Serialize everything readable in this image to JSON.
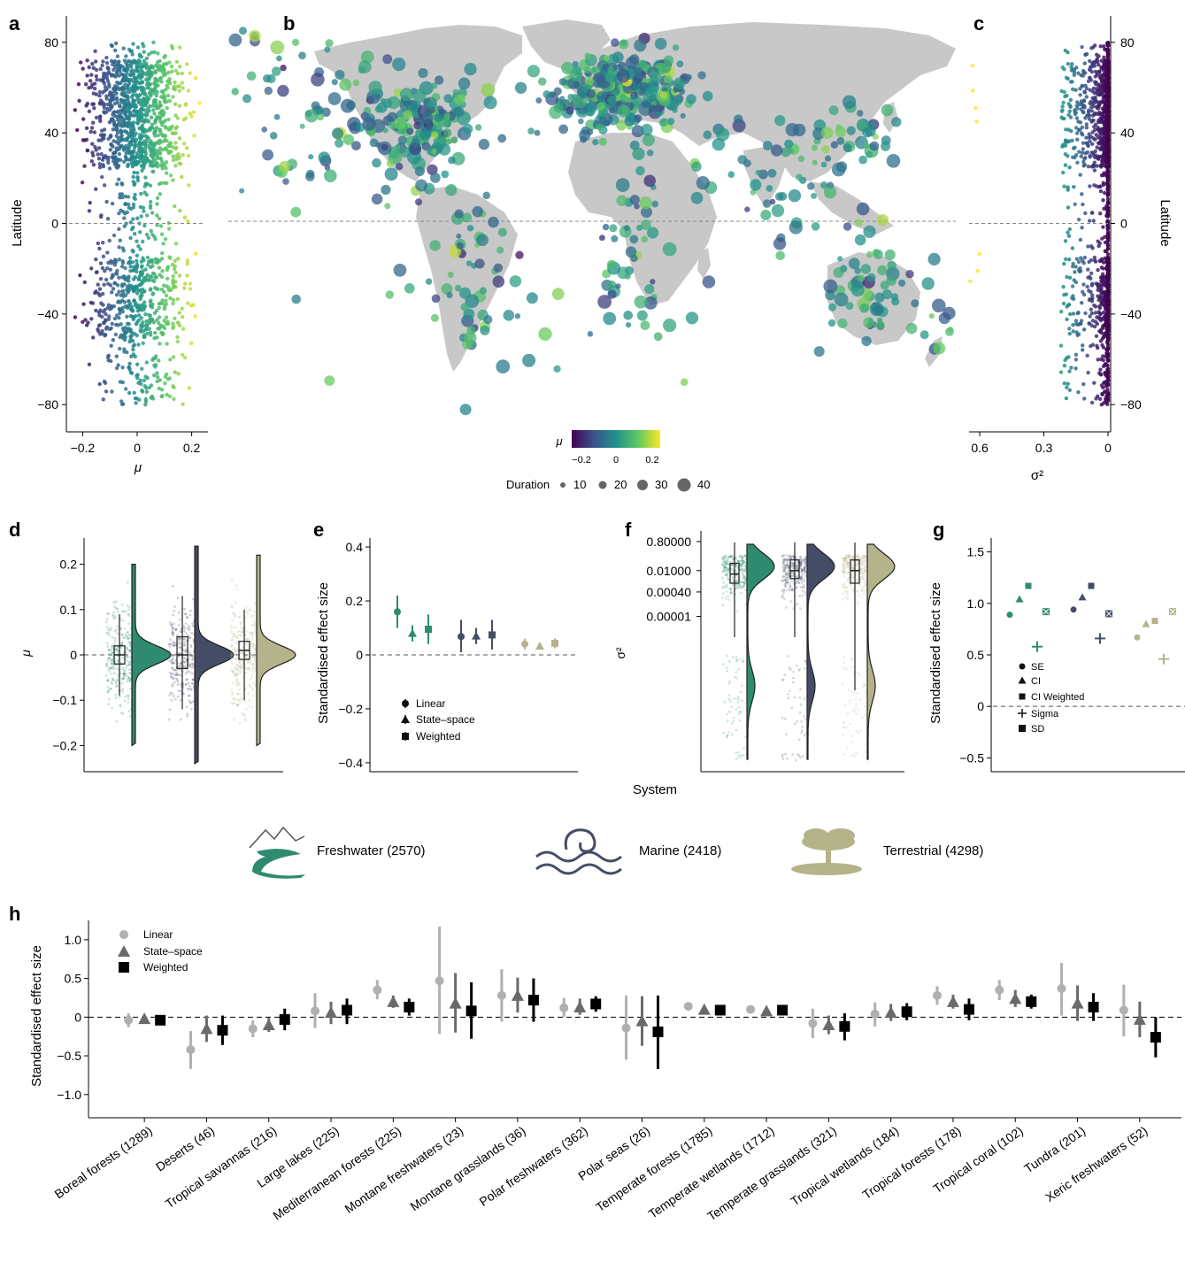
{
  "panel_letters": {
    "a": "a",
    "b": "b",
    "c": "c",
    "d": "d",
    "e": "e",
    "f": "f",
    "g": "g",
    "h": "h"
  },
  "colors": {
    "freshwater": "#2e8b6f",
    "marine": "#454d66",
    "terrestrial": "#b4b38a",
    "land": "#c8c8c8",
    "viridis": [
      "#440154",
      "#3b528b",
      "#21918c",
      "#5ec962",
      "#fde725"
    ],
    "h_linear": "#b0b0b0",
    "h_statespace": "#6a6a6a",
    "h_weighted": "#000000"
  },
  "icons": {
    "freshwater": "river-mountain-icon",
    "marine": "wave-icon",
    "terrestrial": "acacia-tree-icon"
  },
  "legend_systems": {
    "freshwater": "Freshwater (2570)",
    "marine": "Marine (2418)",
    "terrestrial": "Terrestrial (4298)"
  },
  "colorbar": {
    "label": "μ",
    "ticks": [
      "−0.2",
      "0",
      "0.2"
    ]
  },
  "duration_legend": {
    "label": "Duration",
    "values": [
      "10",
      "20",
      "30",
      "40"
    ]
  },
  "shared_xlabel": "System",
  "chart_data": [
    {
      "panel": "a",
      "type": "scatter",
      "xlabel": "μ",
      "ylabel": "Latitude",
      "xlim": [
        -0.25,
        0.25
      ],
      "ylim": [
        -85,
        85
      ],
      "xticks": [
        {
          "v": -0.2,
          "label": "−0.2"
        },
        {
          "v": 0,
          "label": "0"
        },
        {
          "v": 0.2,
          "label": "0.2"
        }
      ],
      "yticks": [
        {
          "v": -80,
          "label": "−80"
        },
        {
          "v": -40,
          "label": "−40"
        },
        {
          "v": 0,
          "label": "0"
        },
        {
          "v": 40,
          "label": "40"
        },
        {
          "v": 80,
          "label": "80"
        }
      ],
      "reference_line": {
        "axis": "y",
        "value": 0,
        "style": "dashed"
      },
      "color_by": "x"
    },
    {
      "panel": "b",
      "type": "scatter",
      "description_fields": {
        "color": "μ",
        "size": "Duration"
      },
      "xlim": [
        -180,
        180
      ],
      "ylim": [
        -85,
        85
      ],
      "reference_line": {
        "axis": "y",
        "value": 0,
        "style": "dashed"
      }
    },
    {
      "panel": "c",
      "type": "scatter",
      "xlabel": "σ²",
      "ylabel": "Latitude",
      "xlim": [
        0.65,
        0
      ],
      "ylim": [
        -85,
        85
      ],
      "xticks": [
        {
          "v": 0.6,
          "label": "0.6"
        },
        {
          "v": 0.3,
          "label": "0.3"
        },
        {
          "v": 0,
          "label": "0"
        }
      ],
      "yticks": [
        {
          "v": -80,
          "label": "−80"
        },
        {
          "v": -40,
          "label": "−40"
        },
        {
          "v": 0,
          "label": "0"
        },
        {
          "v": 40,
          "label": "40"
        },
        {
          "v": 80,
          "label": "80"
        }
      ],
      "reference_line": {
        "axis": "y",
        "value": 0,
        "style": "dashed"
      },
      "color_by": "x"
    },
    {
      "panel": "d",
      "type": "box",
      "ylabel": "μ",
      "ylim": [
        -0.25,
        0.25
      ],
      "yticks": [
        {
          "v": -0.2,
          "label": "−0.2"
        },
        {
          "v": -0.1,
          "label": "−0.1"
        },
        {
          "v": 0,
          "label": "0"
        },
        {
          "v": 0.1,
          "label": "0.1"
        },
        {
          "v": 0.2,
          "label": "0.2"
        }
      ],
      "reference_line": {
        "axis": "y",
        "value": 0,
        "style": "dashed"
      },
      "series": [
        {
          "name": "Freshwater",
          "q1": -0.02,
          "median": 0,
          "q3": 0.02,
          "whisker_low": -0.09,
          "whisker_high": 0.09,
          "min": -0.2,
          "max": 0.2
        },
        {
          "name": "Marine",
          "q1": -0.03,
          "median": 0,
          "q3": 0.04,
          "whisker_low": -0.12,
          "whisker_high": 0.13,
          "min": -0.24,
          "max": 0.24
        },
        {
          "name": "Terrestrial",
          "q1": -0.01,
          "median": 0.01,
          "q3": 0.03,
          "whisker_low": -0.1,
          "whisker_high": 0.1,
          "min": -0.2,
          "max": 0.22
        }
      ]
    },
    {
      "panel": "e",
      "type": "errorbar",
      "ylabel": "Standardised effect size",
      "ylim": [
        -0.42,
        0.42
      ],
      "yticks": [
        {
          "v": -0.4,
          "label": "−0.4"
        },
        {
          "v": -0.2,
          "label": "−0.2"
        },
        {
          "v": 0,
          "label": "0"
        },
        {
          "v": 0.2,
          "label": "0.2"
        },
        {
          "v": 0.4,
          "label": "0.4"
        }
      ],
      "reference_line": {
        "axis": "y",
        "value": 0,
        "style": "dashed"
      },
      "legend": [
        "Linear",
        "State–space",
        "Weighted"
      ],
      "groups": [
        {
          "system": "Freshwater",
          "points": [
            {
              "method": "Linear",
              "y": 0.16,
              "lo": 0.1,
              "hi": 0.22
            },
            {
              "method": "State–space",
              "y": 0.08,
              "lo": 0.05,
              "hi": 0.11
            },
            {
              "method": "Weighted",
              "y": 0.095,
              "lo": 0.04,
              "hi": 0.15
            }
          ]
        },
        {
          "system": "Marine",
          "points": [
            {
              "method": "Linear",
              "y": 0.068,
              "lo": 0.01,
              "hi": 0.13
            },
            {
              "method": "State–space",
              "y": 0.07,
              "lo": 0.04,
              "hi": 0.1
            },
            {
              "method": "Weighted",
              "y": 0.074,
              "lo": 0.02,
              "hi": 0.13
            }
          ]
        },
        {
          "system": "Terrestrial",
          "points": [
            {
              "method": "Linear",
              "y": 0.04,
              "lo": 0.02,
              "hi": 0.06
            },
            {
              "method": "State–space",
              "y": 0.033,
              "lo": 0.025,
              "hi": 0.041
            },
            {
              "method": "Weighted",
              "y": 0.043,
              "lo": 0.025,
              "hi": 0.061
            }
          ]
        }
      ]
    },
    {
      "panel": "f",
      "type": "box",
      "ylabel": "σ²",
      "yscale": "log",
      "yticks": [
        {
          "v": 0.8,
          "label": "0.80000"
        },
        {
          "v": 0.01,
          "label": "0.01000"
        },
        {
          "v": 0.0004,
          "label": "0.00040"
        },
        {
          "v": 1e-05,
          "label": "0.00001"
        }
      ],
      "series": [
        {
          "name": "Freshwater",
          "q1": 0.0015,
          "median": 0.006,
          "q3": 0.03,
          "whisker_low": 1e-05,
          "whisker_high": 0.7
        },
        {
          "name": "Marine",
          "q1": 0.003,
          "median": 0.01,
          "q3": 0.05,
          "whisker_low": 1e-05,
          "whisker_high": 0.7
        },
        {
          "name": "Terrestrial",
          "q1": 0.0015,
          "median": 0.01,
          "q3": 0.05,
          "whisker_low": 1e-05,
          "whisker_high": 0.7
        }
      ]
    },
    {
      "panel": "g",
      "type": "scatter",
      "ylabel": "Standardised effect size",
      "ylim": [
        -0.6,
        1.6
      ],
      "yticks": [
        {
          "v": -0.5,
          "label": "−0.5"
        },
        {
          "v": 0,
          "label": "0"
        },
        {
          "v": 0.5,
          "label": "0.5"
        },
        {
          "v": 1,
          "label": "1.0"
        },
        {
          "v": 1.5,
          "label": "1.5"
        }
      ],
      "reference_line": {
        "axis": "y",
        "value": 0,
        "style": "dashed"
      },
      "legend": [
        "SE",
        "CI",
        "CI Weighted",
        "Sigma",
        "SD"
      ],
      "groups": [
        {
          "system": "Freshwater",
          "points": [
            {
              "method": "SE",
              "y": 0.89
            },
            {
              "method": "CI",
              "y": 1.04
            },
            {
              "method": "CI Weighted",
              "y": 1.17
            },
            {
              "method": "Sigma",
              "y": 0.58
            },
            {
              "method": "SD",
              "y": 0.92
            }
          ]
        },
        {
          "system": "Marine",
          "points": [
            {
              "method": "SE",
              "y": 0.94
            },
            {
              "method": "CI",
              "y": 1.06
            },
            {
              "method": "CI Weighted",
              "y": 1.17
            },
            {
              "method": "Sigma",
              "y": 0.66
            },
            {
              "method": "SD",
              "y": 0.9
            }
          ]
        },
        {
          "system": "Terrestrial",
          "points": [
            {
              "method": "SE",
              "y": 0.67
            },
            {
              "method": "CI",
              "y": 0.8
            },
            {
              "method": "CI Weighted",
              "y": 0.83
            },
            {
              "method": "Sigma",
              "y": 0.46
            },
            {
              "method": "SD",
              "y": 0.92
            }
          ]
        }
      ]
    },
    {
      "panel": "h",
      "type": "errorbar",
      "ylabel": "Standardised effect size",
      "ylim": [
        -1.3,
        1.25
      ],
      "yticks": [
        {
          "v": -1,
          "label": "−1.0"
        },
        {
          "v": -0.5,
          "label": "−0.5"
        },
        {
          "v": 0,
          "label": "0"
        },
        {
          "v": 0.5,
          "label": "0.5"
        },
        {
          "v": 1,
          "label": "1.0"
        }
      ],
      "reference_line": {
        "axis": "y",
        "value": 0,
        "style": "dashed"
      },
      "legend": [
        "Linear",
        "State–space",
        "Weighted"
      ],
      "categories": [
        "Boreal forests (1289)",
        "Deserts (46)",
        "Tropical savannas (216)",
        "Large lakes (225)",
        "Mediterranean forests (225)",
        "Montane freshwaters (23)",
        "Montane grasslands (36)",
        "Polar freshwaters (362)",
        "Polar seas (26)",
        "Temperate forests (1785)",
        "Temperate wetlands (1712)",
        "Temperate grasslands (321)",
        "Tropical wetlands (184)",
        "Tropical forests (178)",
        "Tropical coral (102)",
        "Tundra (201)",
        "Xeric freshwaters (52)"
      ],
      "series": [
        {
          "name": "Linear",
          "values": [
            -0.04,
            -0.42,
            -0.15,
            0.08,
            0.35,
            0.47,
            0.28,
            0.12,
            -0.14,
            0.14,
            0.1,
            -0.08,
            0.04,
            0.28,
            0.35,
            0.37,
            0.09
          ],
          "lo": [
            -0.13,
            -0.67,
            -0.26,
            -0.14,
            0.23,
            -0.22,
            -0.06,
            0.0,
            -0.55,
            0.09,
            0.06,
            -0.27,
            -0.12,
            0.16,
            0.22,
            0.02,
            -0.25
          ],
          "hi": [
            0.05,
            -0.18,
            -0.04,
            0.31,
            0.48,
            1.17,
            0.62,
            0.25,
            0.28,
            0.19,
            0.14,
            0.11,
            0.19,
            0.4,
            0.48,
            0.7,
            0.42
          ]
        },
        {
          "name": "State–space",
          "values": [
            -0.02,
            -0.15,
            -0.1,
            0.06,
            0.2,
            0.18,
            0.28,
            0.13,
            -0.05,
            0.1,
            0.08,
            -0.1,
            0.06,
            0.2,
            0.24,
            0.18,
            -0.03
          ],
          "lo": [
            -0.07,
            -0.32,
            -0.19,
            -0.09,
            0.12,
            -0.2,
            0.06,
            0.03,
            -0.37,
            0.07,
            0.05,
            -0.22,
            -0.05,
            0.11,
            0.13,
            -0.05,
            -0.26
          ],
          "hi": [
            0.03,
            0.02,
            -0.01,
            0.2,
            0.28,
            0.57,
            0.51,
            0.24,
            0.27,
            0.13,
            0.11,
            0.02,
            0.17,
            0.29,
            0.35,
            0.41,
            0.2
          ]
        },
        {
          "name": "Weighted",
          "values": [
            -0.04,
            -0.17,
            -0.03,
            0.09,
            0.13,
            0.08,
            0.22,
            0.17,
            -0.19,
            0.09,
            0.09,
            -0.12,
            0.07,
            0.1,
            0.2,
            0.13,
            -0.26
          ],
          "lo": [
            -0.1,
            -0.36,
            -0.17,
            -0.09,
            0.02,
            -0.28,
            -0.06,
            0.07,
            -0.67,
            0.06,
            0.06,
            -0.3,
            -0.04,
            -0.04,
            0.11,
            -0.05,
            -0.52
          ],
          "hi": [
            0.02,
            0.02,
            0.11,
            0.24,
            0.24,
            0.45,
            0.5,
            0.27,
            0.28,
            0.12,
            0.12,
            0.05,
            0.18,
            0.24,
            0.29,
            0.31,
            0.0
          ]
        }
      ]
    }
  ]
}
